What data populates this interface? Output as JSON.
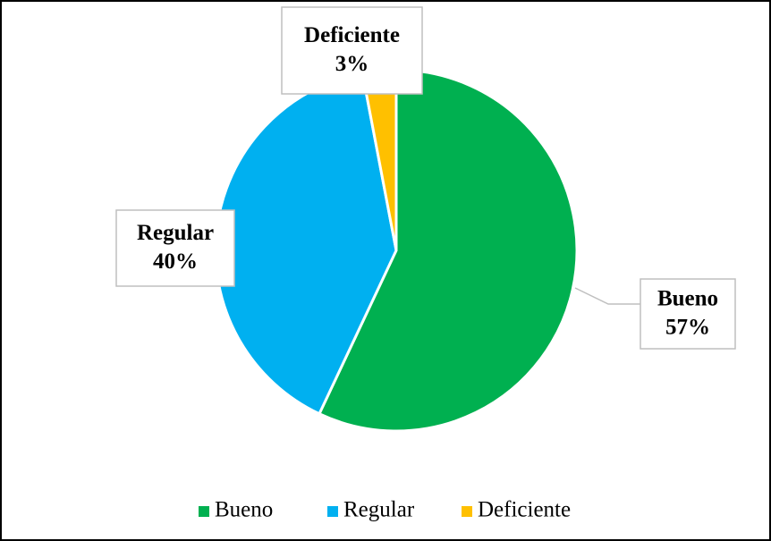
{
  "chart_data": {
    "type": "pie",
    "categories": [
      "Bueno",
      "Regular",
      "Deficiente"
    ],
    "values": [
      57,
      40,
      3
    ],
    "value_labels": [
      "57%",
      "40%",
      "3%"
    ],
    "colors": [
      "#00b050",
      "#00b0f0",
      "#ffc000"
    ],
    "legend": "bottom"
  }
}
